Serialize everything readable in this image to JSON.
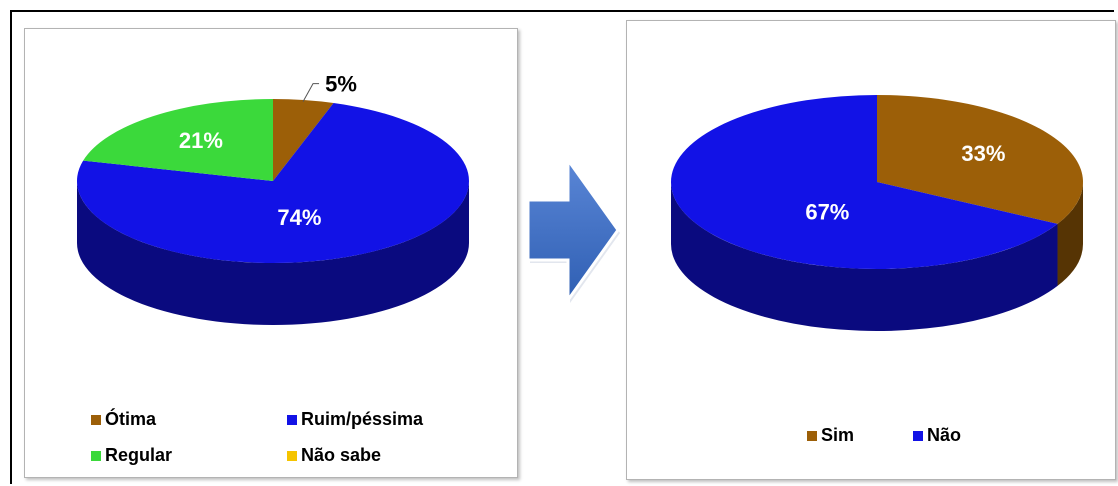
{
  "chart_data": [
    {
      "type": "pie",
      "style": "3d",
      "slices": [
        {
          "label": "Ótima",
          "value": 5,
          "display": "5%",
          "color": "#9c5f08"
        },
        {
          "label": "Ruim/péssima",
          "value": 74,
          "display": "74%",
          "color": "#1212e6"
        },
        {
          "label": "Regular",
          "value": 21,
          "display": "21%",
          "color": "#3bd93b"
        },
        {
          "label": "Não sabe",
          "value": 0,
          "display": "",
          "color": "#f5c400"
        }
      ],
      "legend_position": "bottom"
    },
    {
      "type": "pie",
      "style": "3d",
      "slices": [
        {
          "label": "Sim",
          "value": 33,
          "display": "33%",
          "color": "#9c5f08"
        },
        {
          "label": "Não",
          "value": 67,
          "display": "67%",
          "color": "#1212e6"
        }
      ],
      "legend_position": "bottom"
    }
  ],
  "arrow": {
    "icon": "right-arrow-icon",
    "color": "#4472c4"
  }
}
